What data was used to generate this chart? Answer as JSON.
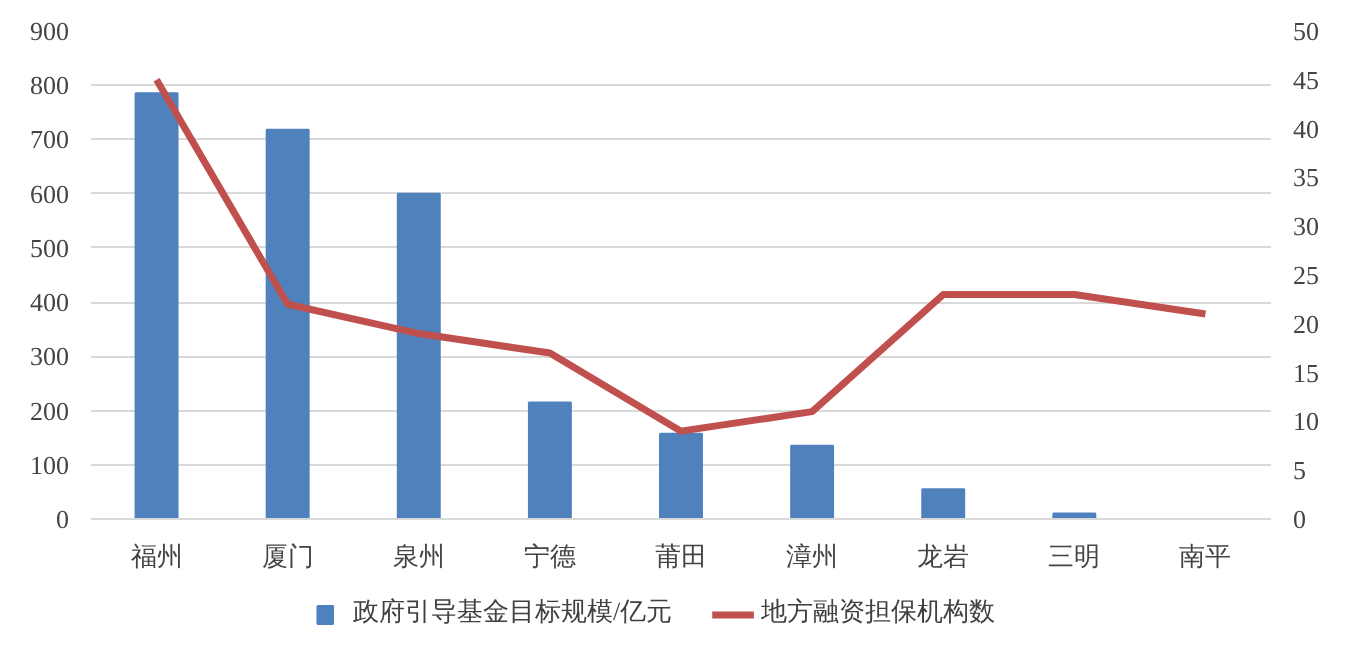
{
  "chart_data": {
    "type": "bar",
    "categories": [
      "福州",
      "厦门",
      "泉州",
      "宁德",
      "莆田",
      "漳州",
      "龙岩",
      "三明",
      "南平"
    ],
    "series": [
      {
        "name": "政府引导基金目标规模/亿元",
        "color": "#4f81bd",
        "values": [
          785,
          718,
          600,
          215,
          157,
          135,
          55,
          10,
          null
        ]
      },
      {
        "name": "地方融资担保机构数",
        "type": "line",
        "axis": "y2",
        "color": "#c0504d",
        "values": [
          45,
          22,
          19,
          17,
          9,
          11,
          23,
          23,
          21
        ]
      }
    ],
    "ylim": [
      0,
      900
    ],
    "yticks": [
      0,
      100,
      200,
      300,
      400,
      500,
      600,
      700,
      800,
      900
    ],
    "y2lim": [
      0,
      50
    ],
    "y2ticks": [
      0,
      5,
      10,
      15,
      20,
      25,
      30,
      35,
      40,
      45,
      50
    ],
    "grid": "y",
    "legend": "bottom",
    "marker": "none",
    "line_style": "solid"
  }
}
